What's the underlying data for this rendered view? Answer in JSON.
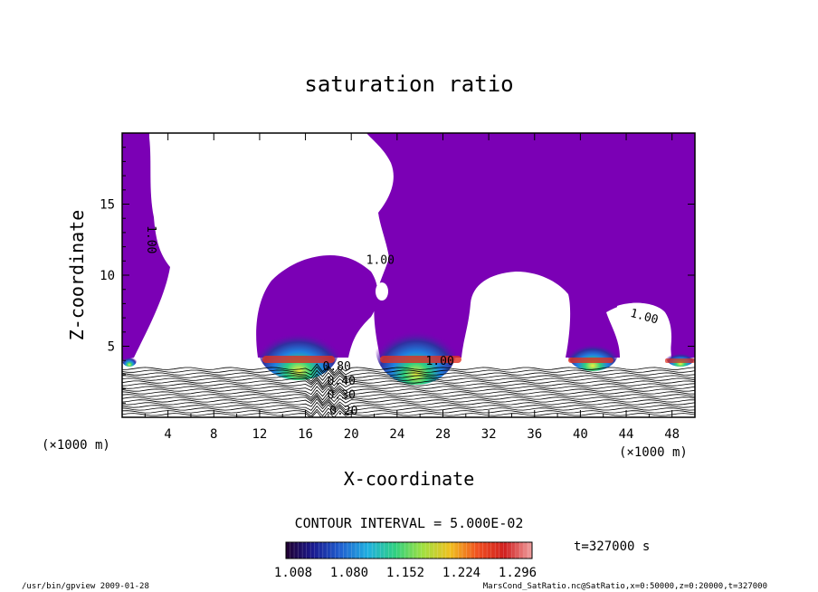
{
  "chart_data": {
    "type": "contour",
    "title": "saturation ratio",
    "xlabel": "X-coordinate",
    "ylabel": "Z-coordinate",
    "x_unit": "(×1000 m)",
    "y_unit": "(×1000 m)",
    "xlim": [
      0,
      50
    ],
    "ylim": [
      0,
      20
    ],
    "x_ticks": [
      "4",
      "8",
      "12",
      "16",
      "20",
      "24",
      "28",
      "32",
      "36",
      "40",
      "44",
      "48"
    ],
    "y_ticks": [
      "5",
      "10",
      "15"
    ],
    "contour_interval": "CONTOUR INTERVAL = 5.000E-02",
    "time_label": "t=327000 s",
    "colorbar": {
      "ticks": [
        "1.008",
        "1.080",
        "1.152",
        "1.224",
        "1.296"
      ],
      "colors": [
        "#200030",
        "#1a1a90",
        "#2060d0",
        "#20b0e0",
        "#30d080",
        "#a0e040",
        "#f0c020",
        "#f05020",
        "#d02020",
        "#f0a0a0"
      ]
    },
    "fill_color_base": "#7b00b5",
    "contour_labels": [
      {
        "text": "1.00",
        "x": 2.2,
        "y": 13.5,
        "rotate": 90
      },
      {
        "text": "1.00",
        "x": 21.3,
        "y": 10.8
      },
      {
        "text": "1.00",
        "x": 44.3,
        "y": 7.1,
        "rotate": 15
      },
      {
        "text": "1.00",
        "x": 26.5,
        "y": 3.7
      },
      {
        "text": "0.80",
        "x": 17.5,
        "y": 3.3
      },
      {
        "text": "0.40",
        "x": 17.9,
        "y": 2.3
      },
      {
        "text": "0.30",
        "x": 17.9,
        "y": 1.3
      },
      {
        "text": "0.20",
        "x": 18.1,
        "y": 0.2
      }
    ]
  },
  "footer": {
    "left": "/usr/bin/gpview   2009-01-28",
    "right": "MarsCond_SatRatio.nc@SatRatio,x=0:50000,z=0:20000,t=327000"
  }
}
